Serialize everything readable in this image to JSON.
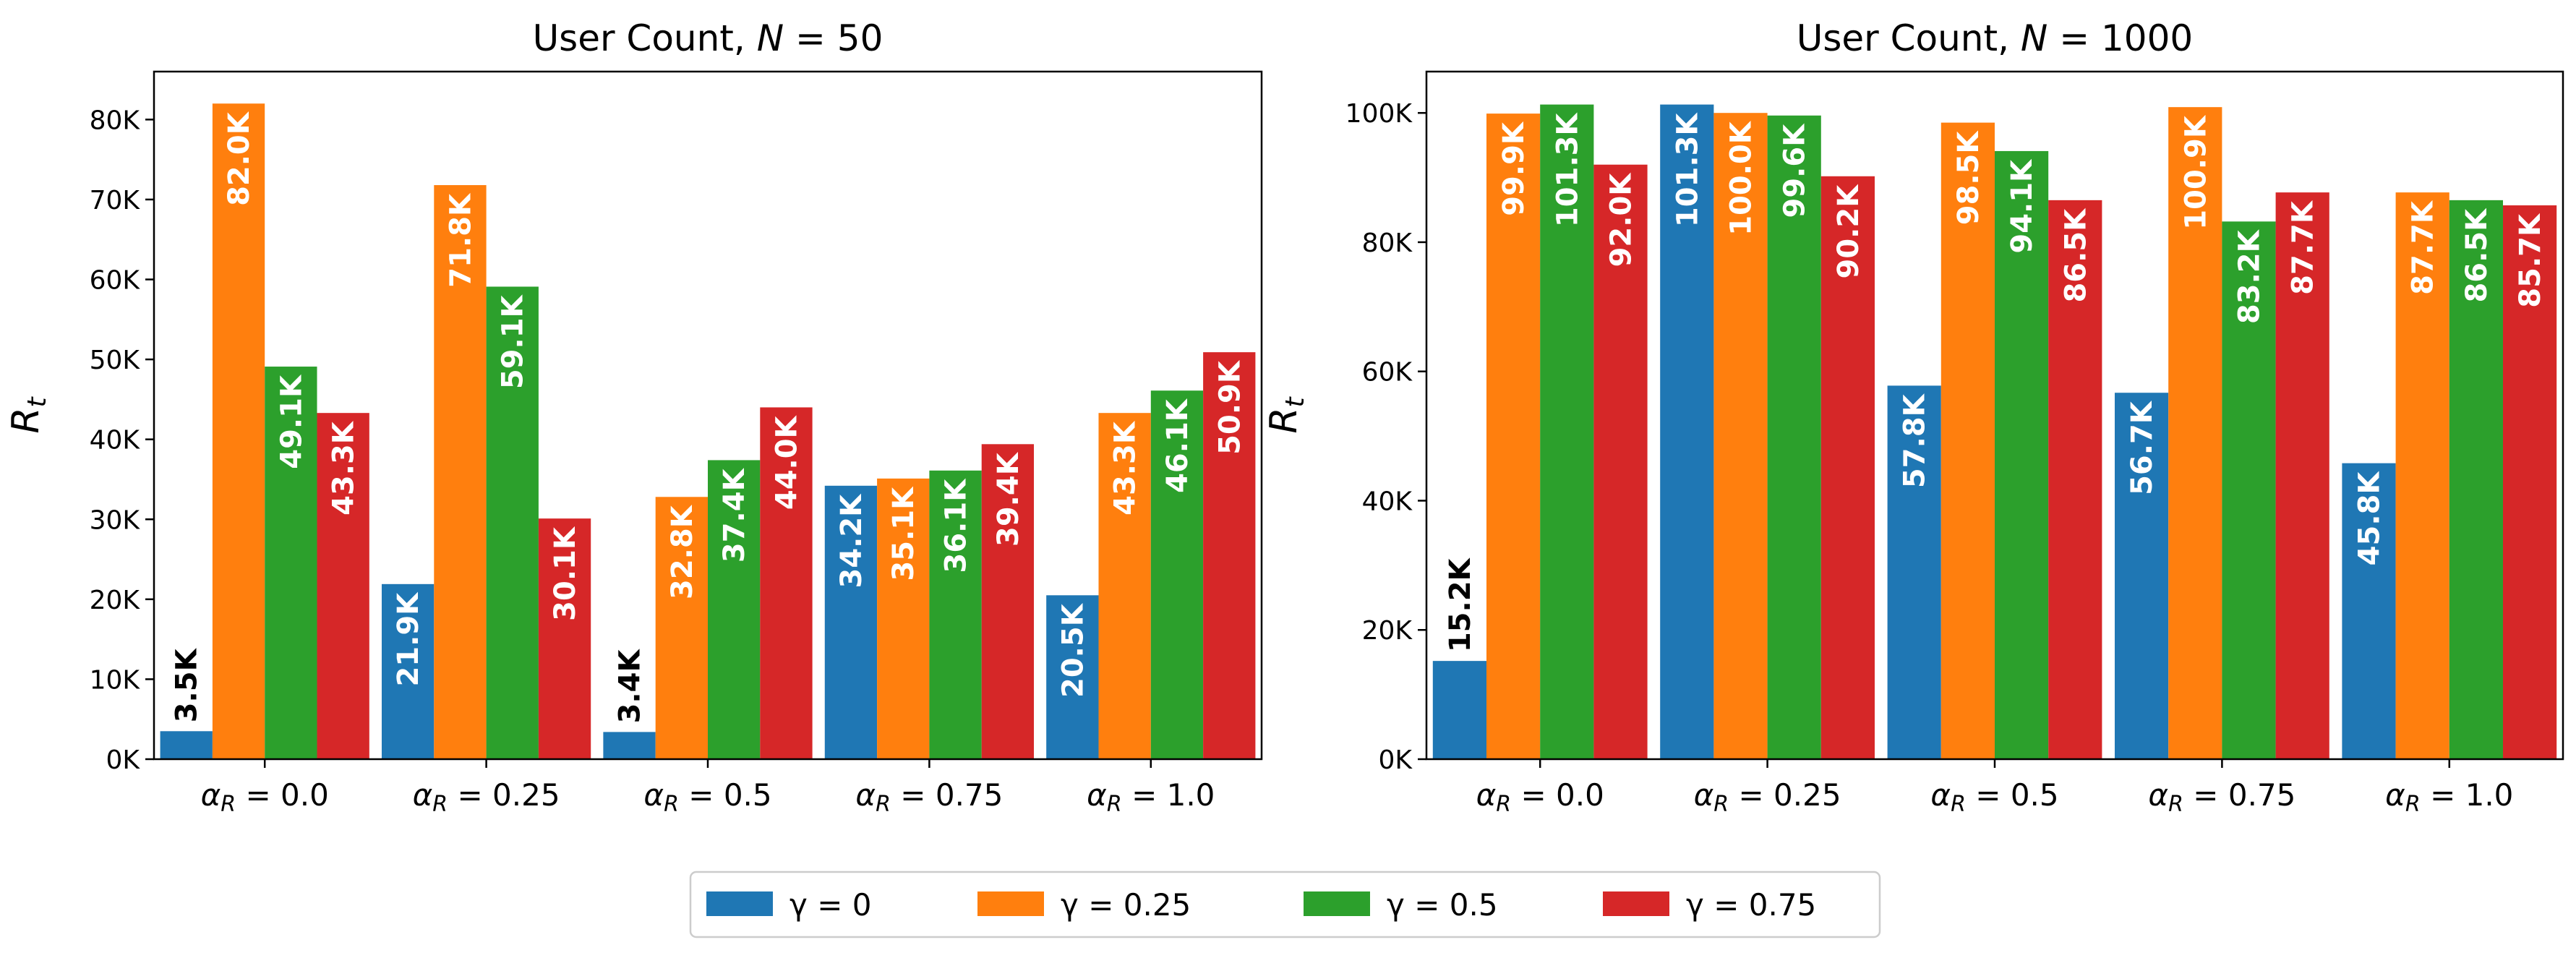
{
  "colors": {
    "series": [
      "#1f77b4",
      "#ff7f0e",
      "#2ca02c",
      "#d62728"
    ],
    "axis": "#000000",
    "legend_border": "#cccccc"
  },
  "legend": {
    "items": [
      "γ = 0",
      "γ = 0.25",
      "γ = 0.5",
      "γ = 0.75"
    ],
    "placement": "bottom-center"
  },
  "chart_data": [
    {
      "type": "bar",
      "title_prefix": "User Count, ",
      "title_var": "N",
      "title_suffix": " = 50",
      "ylabel_main": "R",
      "ylabel_sub": "t",
      "categories": [
        "α_R = 0.0",
        "α_R = 0.25",
        "α_R = 0.5",
        "α_R = 0.75",
        "α_R = 1.0"
      ],
      "category_labels": [
        {
          "sym": "α",
          "sub": "R",
          "rest": " = 0.0"
        },
        {
          "sym": "α",
          "sub": "R",
          "rest": " = 0.25"
        },
        {
          "sym": "α",
          "sub": "R",
          "rest": " = 0.5"
        },
        {
          "sym": "α",
          "sub": "R",
          "rest": " = 0.75"
        },
        {
          "sym": "α",
          "sub": "R",
          "rest": " = 1.0"
        }
      ],
      "series": [
        {
          "name": "γ = 0",
          "values": [
            3500,
            21900,
            3400,
            34200,
            20500
          ],
          "labels": [
            "3.5K",
            "21.9K",
            "3.4K",
            "34.2K",
            "20.5K"
          ]
        },
        {
          "name": "γ = 0.25",
          "values": [
            82000,
            71800,
            32800,
            35100,
            43300
          ],
          "labels": [
            "82.0K",
            "71.8K",
            "32.8K",
            "35.1K",
            "43.3K"
          ]
        },
        {
          "name": "γ = 0.5",
          "values": [
            49100,
            59100,
            37400,
            36100,
            46100
          ],
          "labels": [
            "49.1K",
            "59.1K",
            "37.4K",
            "36.1K",
            "46.1K"
          ]
        },
        {
          "name": "γ = 0.75",
          "values": [
            43300,
            30100,
            44000,
            39400,
            50900
          ],
          "labels": [
            "43.3K",
            "30.1K",
            "44.0K",
            "39.4K",
            "50.9K"
          ]
        }
      ],
      "ylim": [
        0,
        86000
      ],
      "yticks": [
        0,
        10000,
        20000,
        30000,
        40000,
        50000,
        60000,
        70000,
        80000
      ],
      "ytick_labels": [
        "0K",
        "10K",
        "20K",
        "30K",
        "40K",
        "50K",
        "60K",
        "70K",
        "80K"
      ],
      "grid": false
    },
    {
      "type": "bar",
      "title_prefix": "User Count, ",
      "title_var": "N",
      "title_suffix": " = 1000",
      "ylabel_main": "R",
      "ylabel_sub": "t",
      "categories": [
        "α_R = 0.0",
        "α_R = 0.25",
        "α_R = 0.5",
        "α_R = 0.75",
        "α_R = 1.0"
      ],
      "category_labels": [
        {
          "sym": "α",
          "sub": "R",
          "rest": " = 0.0"
        },
        {
          "sym": "α",
          "sub": "R",
          "rest": " = 0.25"
        },
        {
          "sym": "α",
          "sub": "R",
          "rest": " = 0.5"
        },
        {
          "sym": "α",
          "sub": "R",
          "rest": " = 0.75"
        },
        {
          "sym": "α",
          "sub": "R",
          "rest": " = 1.0"
        }
      ],
      "series": [
        {
          "name": "γ = 0",
          "values": [
            15200,
            101300,
            57800,
            56700,
            45800
          ],
          "labels": [
            "15.2K",
            "101.3K",
            "57.8K",
            "56.7K",
            "45.8K"
          ]
        },
        {
          "name": "γ = 0.25",
          "values": [
            99900,
            100000,
            98500,
            100900,
            87700
          ],
          "labels": [
            "99.9K",
            "100.0K",
            "98.5K",
            "100.9K",
            "87.7K"
          ]
        },
        {
          "name": "γ = 0.5",
          "values": [
            101300,
            99600,
            94100,
            83200,
            86500
          ],
          "labels": [
            "101.3K",
            "99.6K",
            "94.1K",
            "83.2K",
            "86.5K"
          ]
        },
        {
          "name": "γ = 0.75",
          "values": [
            92000,
            90200,
            86500,
            87700,
            85700
          ],
          "labels": [
            "92.0K",
            "90.2K",
            "86.5K",
            "87.7K",
            "85.7K"
          ]
        }
      ],
      "ylim": [
        0,
        106400
      ],
      "yticks": [
        0,
        20000,
        40000,
        60000,
        80000,
        100000
      ],
      "ytick_labels": [
        "0K",
        "20K",
        "40K",
        "60K",
        "80K",
        "100K"
      ],
      "grid": false
    }
  ]
}
